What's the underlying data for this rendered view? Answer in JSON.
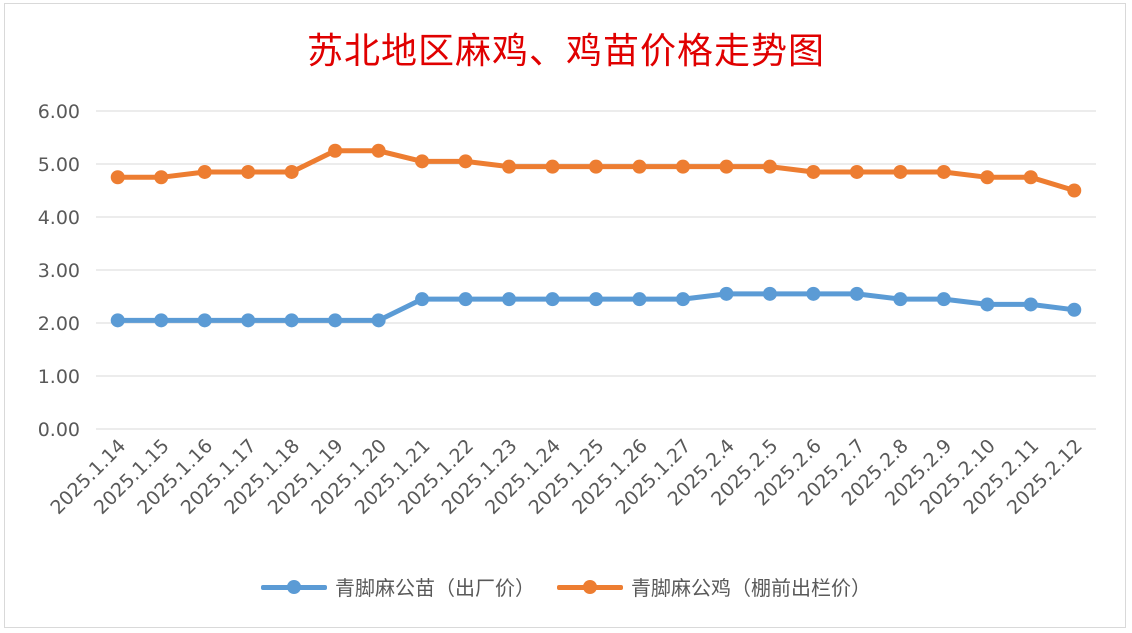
{
  "chart_data": {
    "type": "line",
    "title": "苏北地区麻鸡、鸡苗价格走势图",
    "xlabel": "",
    "ylabel": "",
    "ylim": [
      0,
      6
    ],
    "yticks": [
      "0.00",
      "1.00",
      "2.00",
      "3.00",
      "4.00",
      "5.00",
      "6.00"
    ],
    "grid": true,
    "legend_position": "bottom",
    "categories": [
      "2025.1.14",
      "2025.1.15",
      "2025.1.16",
      "2025.1.17",
      "2025.1.18",
      "2025.1.19",
      "2025.1.20",
      "2025.1.21",
      "2025.1.22",
      "2025.1.23",
      "2025.1.24",
      "2025.1.25",
      "2025.1.26",
      "2025.1.27",
      "2025.2.4",
      "2025.2.5",
      "2025.2.6",
      "2025.2.7",
      "2025.2.8",
      "2025.2.9",
      "2025.2.10",
      "2025.2.11",
      "2025.2.12"
    ],
    "series": [
      {
        "name": "青脚麻公苗（出厂价）",
        "color": "#5b9bd5",
        "values": [
          2.05,
          2.05,
          2.05,
          2.05,
          2.05,
          2.05,
          2.05,
          2.45,
          2.45,
          2.45,
          2.45,
          2.45,
          2.45,
          2.45,
          2.55,
          2.55,
          2.55,
          2.55,
          2.45,
          2.45,
          2.35,
          2.35,
          2.25
        ]
      },
      {
        "name": "青脚麻公鸡（棚前出栏价）",
        "color": "#ed7d31",
        "values": [
          4.75,
          4.75,
          4.85,
          4.85,
          4.85,
          5.25,
          5.25,
          5.05,
          5.05,
          4.95,
          4.95,
          4.95,
          4.95,
          4.95,
          4.95,
          4.95,
          4.85,
          4.85,
          4.85,
          4.85,
          4.75,
          4.75,
          4.5
        ]
      }
    ]
  }
}
